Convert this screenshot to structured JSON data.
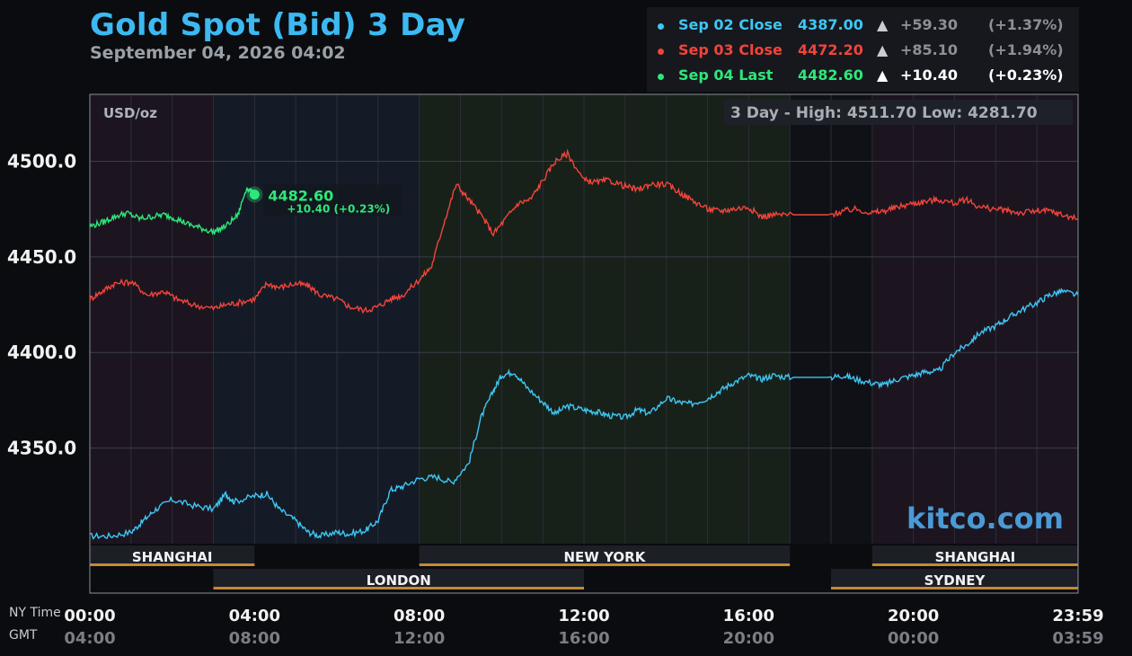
{
  "header": {
    "title": "Gold Spot (Bid) 3 Day",
    "subtitle": "September 04, 2026 04:02"
  },
  "legend": [
    {
      "name": "Sep 02 Close",
      "value": "4387.00",
      "arrow": "▲",
      "change": "+59.30",
      "pct": "(+1.37%)",
      "color": "#3fc6f3",
      "change_color": "#8c9096"
    },
    {
      "name": "Sep 03 Close",
      "value": "4472.20",
      "arrow": "▲",
      "change": "+85.10",
      "pct": "(+1.94%)",
      "color": "#f2443a",
      "change_color": "#8c9096"
    },
    {
      "name": "Sep 04 Last",
      "value": "4482.60",
      "arrow": "▲",
      "change": "+10.40",
      "pct": "(+0.23%)",
      "color": "#2ee77a",
      "change_color": "#ffffff"
    }
  ],
  "unit_label": "USD/oz",
  "range_box": "3 Day - High: 4511.70  Low: 4281.70",
  "last_marker": {
    "value": "4482.60",
    "change": "+10.40 (+0.23%)"
  },
  "watermark": "kitco.com",
  "axis_captions": {
    "ny": "NY Time",
    "gmt": "GMT"
  },
  "sessions": [
    {
      "name": "SHANGHAI",
      "start": 0,
      "end": 4,
      "row": 1
    },
    {
      "name": "NEW YORK",
      "start": 8,
      "end": 17,
      "row": 1
    },
    {
      "name": "SHANGHAI",
      "start": 19,
      "end": 24,
      "row": 1
    },
    {
      "name": "LONDON",
      "start": 3,
      "end": 12,
      "row": 2
    },
    {
      "name": "SYDNEY",
      "start": 18,
      "end": 24,
      "row": 2
    }
  ],
  "x_ticks": [
    {
      "ny": "00:00",
      "gmt": "04:00",
      "hour": 0
    },
    {
      "ny": "04:00",
      "gmt": "08:00",
      "hour": 4
    },
    {
      "ny": "08:00",
      "gmt": "12:00",
      "hour": 8
    },
    {
      "ny": "12:00",
      "gmt": "16:00",
      "hour": 12
    },
    {
      "ny": "16:00",
      "gmt": "20:00",
      "hour": 16
    },
    {
      "ny": "20:00",
      "gmt": "00:00",
      "hour": 20
    },
    {
      "ny": "23:59",
      "gmt": "03:59",
      "hour": 24
    }
  ],
  "chart_data": {
    "type": "line",
    "title": "Gold Spot (Bid) 3 Day",
    "ylabel": "USD/oz",
    "ylim": [
      4300,
      4535
    ],
    "y_ticks": [
      4350.0,
      4400.0,
      4450.0,
      4500.0
    ],
    "x_unit": "NY time hour",
    "xlim": [
      0,
      24
    ],
    "grid": true,
    "series": [
      {
        "name": "Sep 02 Close",
        "color": "#3fc6f3",
        "x": [
          0,
          0.5,
          1,
          1.3,
          1.6,
          2,
          2.5,
          3,
          3.3,
          3.5,
          4,
          4.3,
          4.6,
          5,
          5.3,
          5.6,
          6,
          6.3,
          6.7,
          7,
          7.3,
          7.6,
          8,
          8.4,
          8.8,
          9.2,
          9.5,
          9.8,
          10,
          10.3,
          10.6,
          11,
          11.3,
          11.6,
          12,
          12.3,
          12.6,
          13,
          13.3,
          13.6,
          14,
          14.3,
          14.6,
          15,
          15.3,
          15.6,
          16,
          16.3,
          16.6,
          17,
          18,
          18.3,
          18.6,
          19,
          19.3,
          19.6,
          20,
          20.3,
          20.6,
          21,
          21.3,
          21.6,
          22,
          22.3,
          22.6,
          23,
          23.3,
          23.6,
          24
        ],
        "y": [
          4304,
          4304,
          4306,
          4312,
          4318,
          4323,
          4320,
          4318,
          4326,
          4322,
          4325,
          4326,
          4318,
          4312,
          4306,
          4304,
          4306,
          4305,
          4307,
          4312,
          4328,
          4330,
          4334,
          4335,
          4332,
          4342,
          4366,
          4380,
          4388,
          4390,
          4382,
          4374,
          4368,
          4372,
          4370,
          4369,
          4367,
          4366,
          4370,
          4368,
          4376,
          4374,
          4373,
          4376,
          4380,
          4384,
          4388,
          4386,
          4388,
          4387,
          4387,
          4388,
          4386,
          4384,
          4383,
          4386,
          4388,
          4390,
          4390,
          4400,
          4404,
          4410,
          4414,
          4418,
          4422,
          4426,
          4430,
          4432,
          4430
        ]
      },
      {
        "name": "Sep 03 Close",
        "color": "#f2443a",
        "x": [
          0,
          0.3,
          0.6,
          1,
          1.4,
          1.8,
          2.1,
          2.5,
          3,
          3.3,
          3.6,
          4,
          4.3,
          4.6,
          5,
          5.3,
          5.6,
          6,
          6.3,
          6.7,
          7,
          7.3,
          7.6,
          8,
          8.3,
          8.6,
          8.9,
          9.2,
          9.5,
          9.8,
          10.1,
          10.4,
          10.7,
          11,
          11.3,
          11.6,
          12,
          12.3,
          12.6,
          13,
          13.3,
          13.6,
          14,
          14.3,
          14.6,
          15,
          15.3,
          15.6,
          16,
          16.3,
          16.6,
          17,
          18,
          18.3,
          18.6,
          19,
          19.3,
          19.6,
          20,
          20.3,
          20.6,
          21,
          21.3,
          21.6,
          22,
          22.3,
          22.6,
          23,
          23.3,
          23.6,
          24
        ],
        "y": [
          4428,
          4432,
          4436,
          4437,
          4430,
          4432,
          4428,
          4425,
          4423,
          4425,
          4426,
          4428,
          4436,
          4434,
          4436,
          4435,
          4430,
          4428,
          4424,
          4422,
          4424,
          4428,
          4430,
          4438,
          4445,
          4468,
          4488,
          4480,
          4472,
          4462,
          4470,
          4478,
          4480,
          4490,
          4500,
          4504,
          4490,
          4489,
          4490,
          4487,
          4485,
          4488,
          4488,
          4484,
          4480,
          4475,
          4474,
          4475,
          4476,
          4471,
          4472,
          4472,
          4472,
          4474,
          4475,
          4473,
          4474,
          4476,
          4478,
          4479,
          4480,
          4478,
          4480,
          4476,
          4475,
          4474,
          4473,
          4474,
          4474,
          4472,
          4470
        ]
      },
      {
        "name": "Sep 04 Last",
        "color": "#2ee77a",
        "x": [
          0,
          0.3,
          0.6,
          0.9,
          1.2,
          1.5,
          1.8,
          2.1,
          2.4,
          2.7,
          3,
          3.3,
          3.6,
          3.8,
          4
        ],
        "y": [
          4466,
          4468,
          4471,
          4473,
          4470,
          4471,
          4472,
          4470,
          4467,
          4465,
          4463,
          4466,
          4472,
          4486,
          4482.6
        ]
      }
    ]
  }
}
